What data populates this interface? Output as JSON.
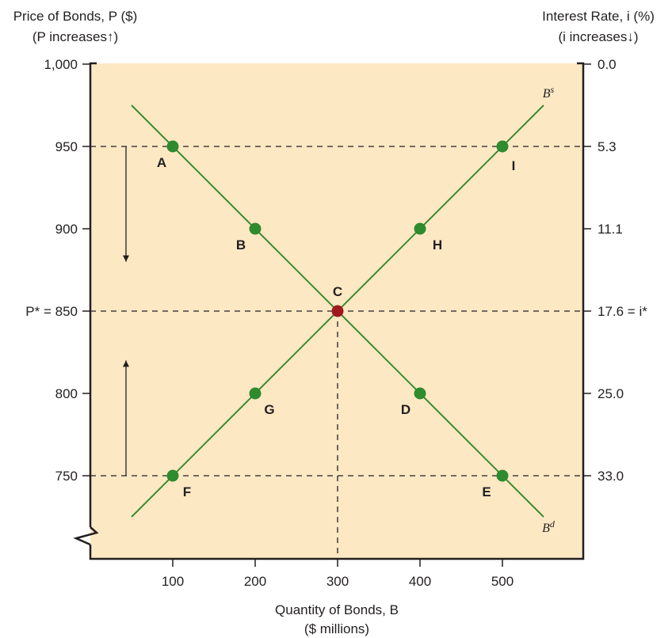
{
  "chart_data": {
    "type": "line",
    "y_axis_left": {
      "title_line1": "Price of Bonds, P ($)",
      "title_line2": "(P increases↑)",
      "range": [
        700,
        1000
      ],
      "ticks": [
        {
          "value": 1000,
          "label": "1,000"
        },
        {
          "value": 950,
          "label": "950"
        },
        {
          "value": 900,
          "label": "900"
        },
        {
          "value": 850,
          "label": "P* = 850"
        },
        {
          "value": 800,
          "label": "800"
        },
        {
          "value": 750,
          "label": "750"
        }
      ]
    },
    "y_axis_right": {
      "title_line1": "Interest Rate, i (%)",
      "title_line2": "(i increases↓)",
      "ticks": [
        {
          "price": 1000,
          "label": "0.0"
        },
        {
          "price": 950,
          "label": "5.3"
        },
        {
          "price": 900,
          "label": "11.1"
        },
        {
          "price": 850,
          "label": "17.6 = i*"
        },
        {
          "price": 800,
          "label": "25.0"
        },
        {
          "price": 750,
          "label": "33.0"
        }
      ]
    },
    "x_axis": {
      "title_line1": "Quantity of Bonds, B",
      "title_line2": "($ millions)",
      "range": [
        0,
        600
      ],
      "ticks": [
        100,
        200,
        300,
        400,
        500
      ]
    },
    "series": [
      {
        "name": "Bs",
        "label_main": "B",
        "label_sup": "s",
        "color": "#3a8a2f",
        "line": [
          [
            50,
            725
          ],
          [
            550,
            975
          ]
        ],
        "points": [
          {
            "x": 100,
            "y": 750,
            "label": "F"
          },
          {
            "x": 200,
            "y": 800,
            "label": "G"
          },
          {
            "x": 400,
            "y": 900,
            "label": "H"
          },
          {
            "x": 500,
            "y": 950,
            "label": "I"
          }
        ]
      },
      {
        "name": "Bd",
        "label_main": "B",
        "label_sup": "d",
        "color": "#3a8a2f",
        "line": [
          [
            50,
            975
          ],
          [
            550,
            725
          ]
        ],
        "points": [
          {
            "x": 100,
            "y": 950,
            "label": "A"
          },
          {
            "x": 200,
            "y": 900,
            "label": "B"
          },
          {
            "x": 400,
            "y": 800,
            "label": "D"
          },
          {
            "x": 500,
            "y": 750,
            "label": "E"
          }
        ]
      }
    ],
    "equilibrium": {
      "x": 300,
      "y": 850,
      "label": "C",
      "color": "#a0191e"
    },
    "dashed_levels": [
      950,
      850,
      750
    ],
    "arrows": [
      {
        "x": 0.5,
        "from": 950,
        "to": 880,
        "direction": "down"
      },
      {
        "x": 0.5,
        "from": 750,
        "to": 820,
        "direction": "up"
      }
    ],
    "grid": false,
    "colors": {
      "plot_background": "#fde8c4",
      "point": "#2e8b2e",
      "line": "#3a8a2f"
    }
  }
}
